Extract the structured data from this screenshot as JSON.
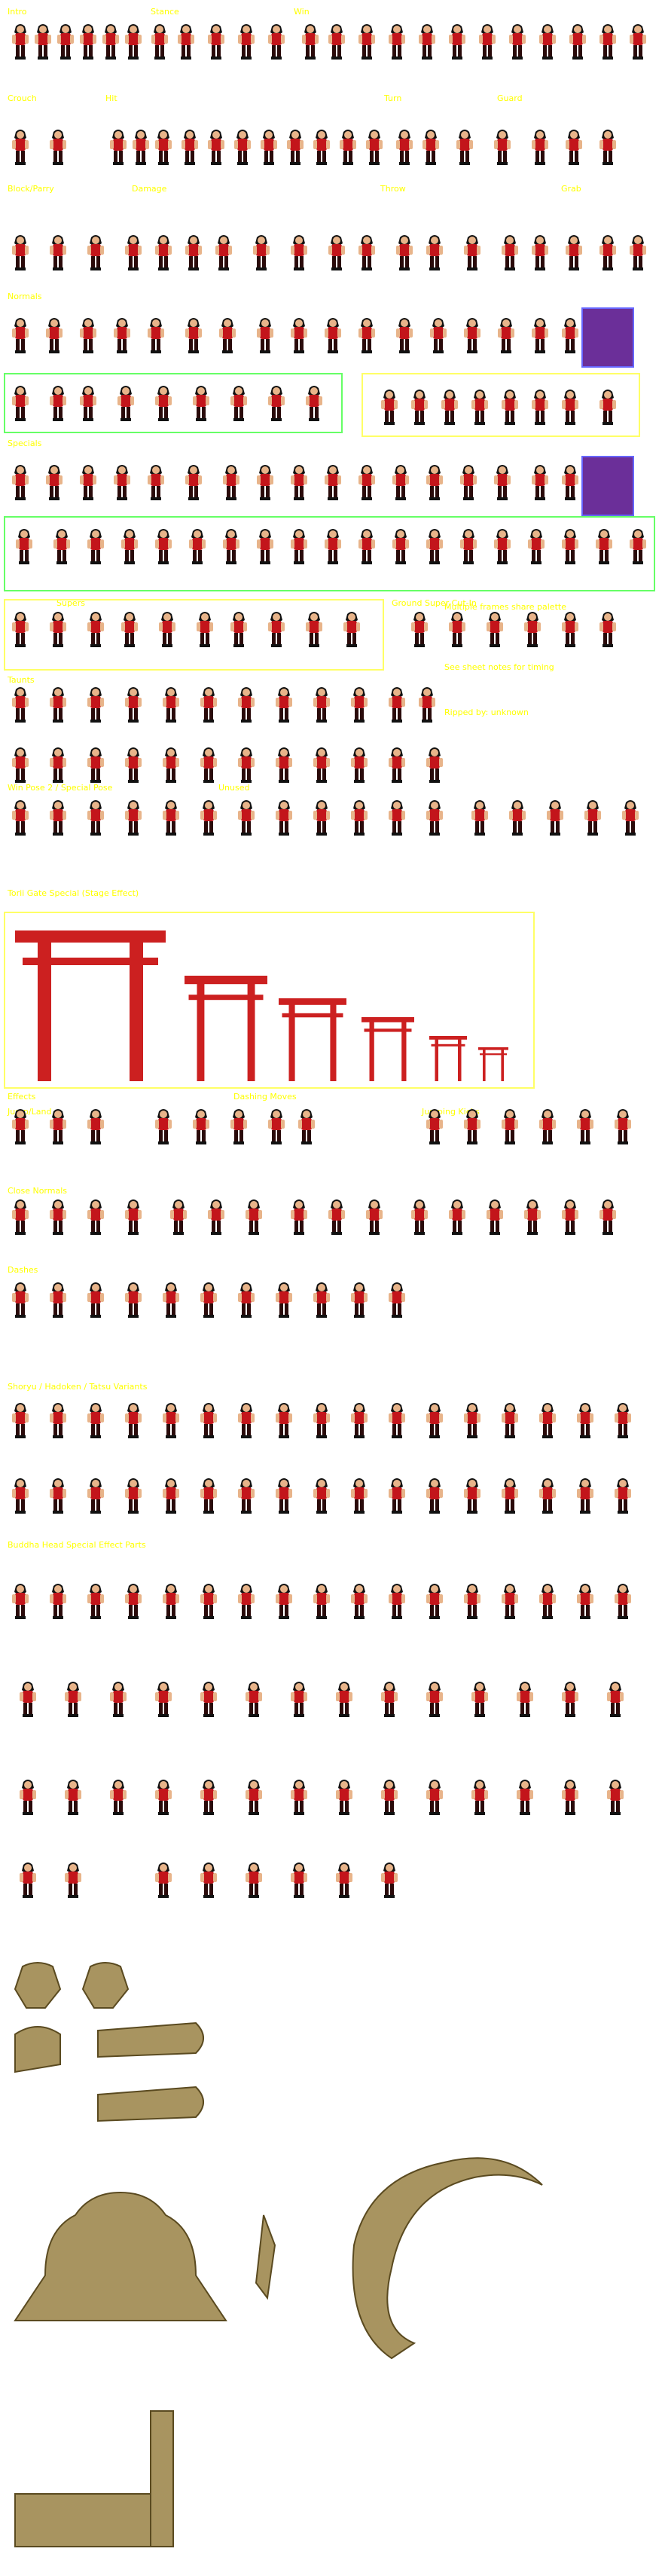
{
  "colors": {
    "label_text": "#ffff00",
    "frame_green": "#66ff66",
    "frame_yellow": "#ffff66",
    "portrait_bg": "#6b2f99",
    "gate_red": "#cc2020",
    "bronze": "#a89460"
  },
  "labels": [
    "Intro",
    "Stance",
    "Win",
    "Crouch",
    "Hit",
    "Turn",
    "Guard",
    "Block/Parry",
    "Damage",
    "Throw",
    "Grab",
    "Normals",
    "Specials",
    "Supers",
    "Taunts",
    "Ground Super Cut-In",
    "Win Pose 2 / Special Pose",
    "Unused",
    "Torii Gate Special (Stage Effect)",
    "Effects",
    "Dashing Moves",
    "Jump/Land",
    "Jumping Kicks",
    "Close Normals",
    "Dashes",
    "Shoryu / Hadoken / Tatsu Variants",
    "Buddha Head Special Effect Parts"
  ],
  "notes": [
    "Multiple frames share palette",
    "See sheet notes for timing",
    "Ripped by: unknown"
  ]
}
